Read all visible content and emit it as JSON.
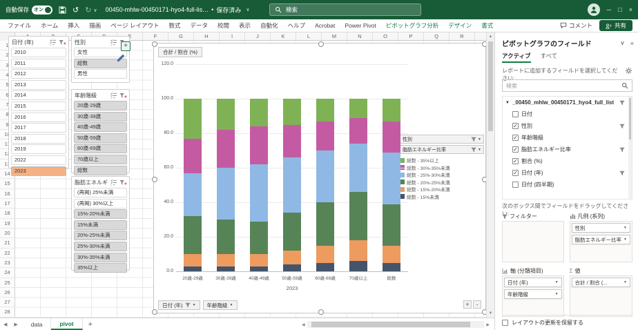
{
  "titlebar": {
    "autosave_label": "自動保存",
    "autosave_state": "オン",
    "filename": "00450-mhlw-00450171-hyo4-full-lis…",
    "saved_status": "保存済み",
    "search_placeholder": "検索"
  },
  "ribbon": {
    "tabs": [
      {
        "label": "ファイル",
        "contextual": false
      },
      {
        "label": "ホーム",
        "contextual": false
      },
      {
        "label": "挿入",
        "contextual": false
      },
      {
        "label": "描画",
        "contextual": false
      },
      {
        "label": "ページ レイアウト",
        "contextual": false
      },
      {
        "label": "数式",
        "contextual": false
      },
      {
        "label": "データ",
        "contextual": false
      },
      {
        "label": "校閲",
        "contextual": false
      },
      {
        "label": "表示",
        "contextual": false
      },
      {
        "label": "自動化",
        "contextual": false
      },
      {
        "label": "ヘルプ",
        "contextual": false
      },
      {
        "label": "Acrobat",
        "contextual": false
      },
      {
        "label": "Power Pivot",
        "contextual": false
      },
      {
        "label": "ピボットグラフ分析",
        "contextual": true
      },
      {
        "label": "デザイン",
        "contextual": true
      },
      {
        "label": "書式",
        "contextual": true
      }
    ],
    "comments_label": "コメント",
    "share_label": "共有"
  },
  "sheet": {
    "column_headers": [
      "A",
      "B",
      "C",
      "D",
      "E",
      "F",
      "G",
      "H",
      "I",
      "J",
      "K",
      "L",
      "M",
      "N",
      "O",
      "P",
      "Q",
      "R"
    ],
    "row_count": 28
  },
  "slicers": [
    {
      "title": "日付 (年)",
      "selected_color": "#F4B183",
      "items": [
        {
          "label": "2010",
          "selected": false
        },
        {
          "label": "2011",
          "selected": false
        },
        {
          "label": "2012",
          "selected": false
        },
        {
          "label": "2013",
          "selected": false
        },
        {
          "label": "2014",
          "selected": false
        },
        {
          "label": "2015",
          "selected": false
        },
        {
          "label": "2016",
          "selected": false
        },
        {
          "label": "2017",
          "selected": false
        },
        {
          "label": "2018",
          "selected": false
        },
        {
          "label": "2019",
          "selected": false
        },
        {
          "label": "2022",
          "selected": false
        },
        {
          "label": "2023",
          "selected": true
        }
      ]
    },
    {
      "title": "性別",
      "selected_color": "#D9D9D9",
      "items": [
        {
          "label": "女性",
          "selected": false
        },
        {
          "label": "総数",
          "selected": true
        },
        {
          "label": "男性",
          "selected": false
        }
      ]
    },
    {
      "title": "年齢階級",
      "selected_color": "#D9D9D9",
      "items": [
        {
          "label": "20歳-29歳",
          "selected": true
        },
        {
          "label": "30歳-39歳",
          "selected": true
        },
        {
          "label": "40歳-49歳",
          "selected": true
        },
        {
          "label": "50歳-59歳",
          "selected": true
        },
        {
          "label": "60歳-69歳",
          "selected": true
        },
        {
          "label": "70歳以上",
          "selected": true
        },
        {
          "label": "総数",
          "selected": true
        }
      ]
    },
    {
      "title": "脂肪エネルギー比率",
      "selected_color": "#D9D9D9",
      "items": [
        {
          "label": "(再掲) 25%未満",
          "selected": false
        },
        {
          "label": "(再掲) 30%以上",
          "selected": false
        },
        {
          "label": "15%-20%未満",
          "selected": true
        },
        {
          "label": "15%未満",
          "selected": true
        },
        {
          "label": "20%-25%未満",
          "selected": true
        },
        {
          "label": "25%-30%未満",
          "selected": true
        },
        {
          "label": "30%-35%未満",
          "selected": true
        },
        {
          "label": "35%以上",
          "selected": true
        }
      ]
    }
  ],
  "chart": {
    "value_button_label": "合計 / 割合 (%)",
    "legend_filter_buttons": [
      "性別",
      "脂肪エネルギー比率"
    ],
    "axis_field_buttons": [
      "日付 (年)",
      "年齢階級"
    ],
    "expand_button": "+",
    "collapse_button": "-"
  },
  "chart_data": {
    "type": "bar",
    "stacked": true,
    "title": "合計 / 割合 (%)",
    "categories": [
      "20歳-29歳",
      "30歳-39歳",
      "40歳-49歳",
      "50歳-59歳",
      "60歳-69歳",
      "70歳以上",
      "総数"
    ],
    "x_group_label": "2023",
    "ylim": [
      0,
      120
    ],
    "yticks": [
      0,
      20,
      40,
      60,
      80,
      100,
      120
    ],
    "ytick_labels": [
      "0.0",
      "20.0",
      "40.0",
      "60.0",
      "80.0",
      "100.0",
      "120.0"
    ],
    "grid": true,
    "legend_position": "right",
    "series_bottom_to_top": [
      {
        "name": "総数 - 15%未満",
        "color": "#44546A",
        "values": [
          3,
          3,
          3,
          4,
          5,
          6,
          5
        ]
      },
      {
        "name": "総数 - 15%-20%未満",
        "color": "#ED9B5F",
        "values": [
          7,
          7,
          7,
          8,
          10,
          12,
          10
        ]
      },
      {
        "name": "総数 - 20%-25%未満",
        "color": "#568457",
        "values": [
          22,
          20,
          19,
          22,
          25,
          28,
          24
        ]
      },
      {
        "name": "総数 - 25%-30%未満",
        "color": "#8FB9E4",
        "values": [
          25,
          30,
          33,
          32,
          30,
          28,
          30
        ]
      },
      {
        "name": "総数 - 30%-35%未満",
        "color": "#C45BA2",
        "values": [
          20,
          22,
          22,
          19,
          17,
          15,
          18
        ]
      },
      {
        "name": "総数 - 35%以上",
        "color": "#7FB254",
        "values": [
          23,
          18,
          16,
          15,
          13,
          11,
          13
        ]
      }
    ],
    "legend_top_to_bottom": [
      "総数 - 35%以上",
      "総数 - 30%-35%未満",
      "総数 - 25%-30%未満",
      "総数 - 20%-25%未満",
      "総数 - 15%-20%未満",
      "総数 - 15%未満"
    ]
  },
  "fields_panel": {
    "title": "ピボットグラフのフィールド",
    "tabs": [
      {
        "label": "アクティブ",
        "active": true
      },
      {
        "label": "すべて",
        "active": false
      }
    ],
    "instruction": "レポートに追加するフィールドを選択してください:",
    "search_placeholder": "検索",
    "table_name": "_00450_mhlw_00450171_hyo4_full_list",
    "fields": [
      {
        "label": "日付",
        "checked": false,
        "filtered": false
      },
      {
        "label": "性別",
        "checked": true,
        "filtered": true
      },
      {
        "label": "年齢階級",
        "checked": true,
        "filtered": false
      },
      {
        "label": "脂肪エネルギー比率",
        "checked": true,
        "filtered": true
      },
      {
        "label": "割合 (%)",
        "checked": true,
        "filtered": false
      },
      {
        "label": "日付 (年)",
        "checked": true,
        "filtered": true
      },
      {
        "label": "日付 (四半期)",
        "checked": false,
        "filtered": false
      }
    ],
    "drag_instruction": "次のボックス間でフィールドをドラッグしてください:",
    "areas": [
      {
        "label": "フィルター",
        "items": []
      },
      {
        "label": "凡例 (系列)",
        "items": [
          "性別",
          "脂肪エネルギー比率"
        ]
      },
      {
        "label": "軸 (分類項目)",
        "items": [
          "日付 (年)",
          "年齢階級"
        ]
      },
      {
        "label": "値",
        "items": [
          "合計 / 割合 (..."
        ]
      }
    ],
    "defer_label": "レイアウトの更新を保留する"
  },
  "sheet_tabs": {
    "sheets": [
      {
        "name": "data",
        "active": false
      },
      {
        "name": "pivot",
        "active": true
      }
    ],
    "add_label": "+"
  },
  "colors": {
    "titlebar_green": "#185C37",
    "accent_green": "#107C41",
    "slicer_selected_orange": "#F4B183",
    "slicer_selected_gray": "#D9D9D9"
  }
}
